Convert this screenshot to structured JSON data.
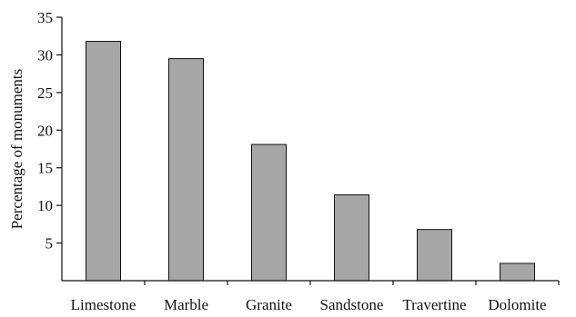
{
  "chart_data": {
    "type": "bar",
    "title": "",
    "xlabel": "",
    "ylabel": "Percentage of monuments",
    "categories": [
      "Limestone",
      "Marble",
      "Granite",
      "Sandstone",
      "Travertine",
      "Dolomite"
    ],
    "values": [
      31.8,
      29.5,
      18.1,
      11.4,
      6.8,
      2.3
    ],
    "ylim": [
      0,
      35
    ],
    "yticks": [
      5,
      10,
      15,
      20,
      25,
      30,
      35
    ],
    "grid": false,
    "legend": "none",
    "colors": {
      "bar_fill": "#a6a6a6",
      "bar_stroke": "#111111",
      "axis": "#111111"
    }
  }
}
